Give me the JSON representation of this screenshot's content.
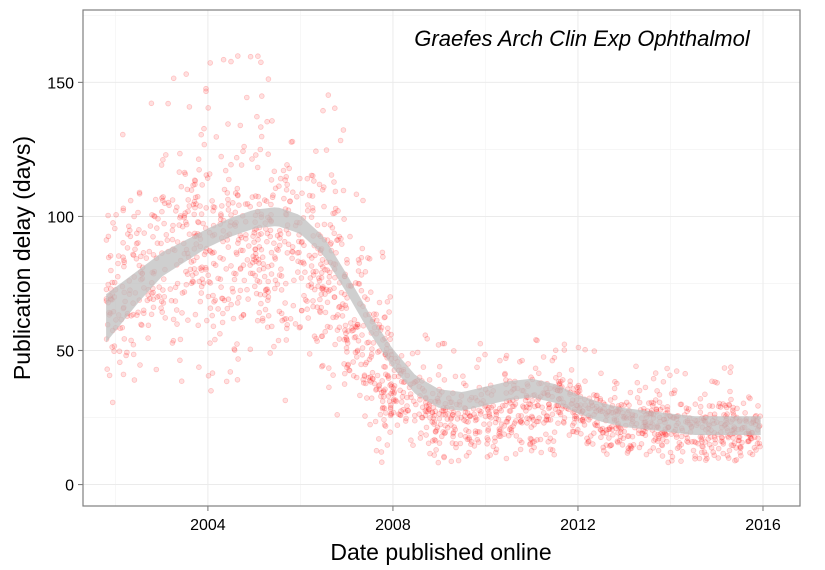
{
  "chart_data": {
    "type": "scatter",
    "title": "",
    "annotation": "Graefes Arch Clin Exp Ophthalmol",
    "xlabel": "Date published online",
    "ylabel": "Publication delay (days)",
    "xlim": [
      2001.3,
      2016.8
    ],
    "ylim": [
      -8,
      177
    ],
    "x_ticks": [
      2004,
      2008,
      2012,
      2016
    ],
    "y_ticks": [
      0,
      50,
      100,
      150
    ],
    "grid": true,
    "point_color": "#ff0000",
    "point_opacity": 0.12,
    "smooth_band_color": "#bfbfbf",
    "smooth": {
      "x": [
        2001.8,
        2002.5,
        2003.0,
        2003.5,
        2004.0,
        2004.5,
        2005.0,
        2005.5,
        2006.0,
        2006.5,
        2007.0,
        2007.5,
        2008.0,
        2008.5,
        2009.0,
        2009.5,
        2010.0,
        2010.5,
        2011.0,
        2011.5,
        2012.0,
        2012.5,
        2013.0,
        2013.5,
        2014.0,
        2014.5,
        2015.0,
        2015.5,
        2015.95
      ],
      "y": [
        62,
        74,
        82,
        87,
        92,
        96,
        99,
        100,
        97,
        89,
        75,
        60,
        47,
        37,
        32,
        31,
        33,
        35,
        36,
        34,
        30,
        27,
        25,
        24,
        23,
        22,
        22,
        22,
        22
      ],
      "band": [
        9,
        6,
        4.5,
        4,
        3.5,
        3.5,
        3.5,
        3.5,
        3.5,
        3.5,
        3.5,
        3.5,
        3.5,
        3.5,
        3.5,
        3.5,
        3.5,
        3.5,
        3.5,
        3.5,
        3.5,
        3.5,
        3.5,
        3.5,
        3.5,
        3.5,
        3.5,
        3.5,
        3.5
      ]
    },
    "scatter_model": {
      "x_range": [
        2001.8,
        2015.95
      ],
      "segments": [
        {
          "x": [
            2001.8,
            2004.0
          ],
          "center_offset": 0,
          "spread": 32,
          "count": 300
        },
        {
          "x": [
            2004.0,
            2007.1
          ],
          "center_offset": -10,
          "spread": 36,
          "count": 500
        },
        {
          "x": [
            2007.1,
            2008.0
          ],
          "center_offset": -12,
          "spread": 26,
          "count": 160
        },
        {
          "x": [
            2008.0,
            2011.5
          ],
          "center_offset": -8,
          "spread": 14,
          "count": 420
        },
        {
          "x": [
            2011.5,
            2015.95
          ],
          "center_offset": -2,
          "spread": 11,
          "count": 560
        }
      ]
    }
  }
}
